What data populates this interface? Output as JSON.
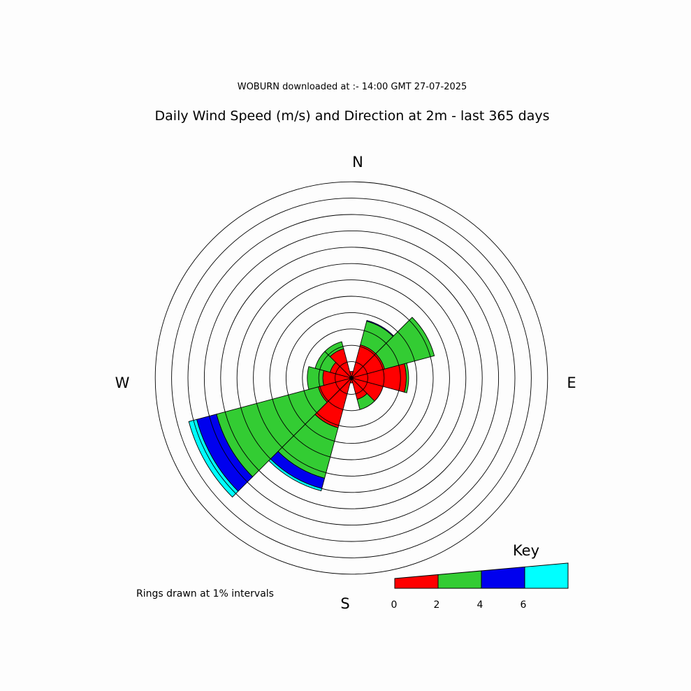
{
  "header": {
    "subtitle": "WOBURN downloaded at :- 14:00 GMT 27-07-2025",
    "title": "Daily Wind Speed (m/s) and Direction at 2m - last 365 days"
  },
  "compass": {
    "n": "N",
    "e": "E",
    "s": "S",
    "w": "W"
  },
  "note": "Rings drawn at 1% intervals",
  "key": {
    "title": "Key",
    "ticks": [
      "0",
      "2",
      "4",
      "6"
    ],
    "bands": [
      {
        "from": 0,
        "to": 2,
        "color": "#ff0000"
      },
      {
        "from": 2,
        "to": 4,
        "color": "#33cc33"
      },
      {
        "from": 4,
        "to": 6,
        "color": "#0000ee"
      },
      {
        "from": 6,
        "to": null,
        "color": "#00ffff"
      }
    ]
  },
  "chart_data": {
    "type": "polar-bar",
    "ring_interval_percent": 1,
    "ring_count": 12,
    "speed_bands_ms": [
      "0-2",
      "2-4",
      "4-6",
      "6+"
    ],
    "band_colors": [
      "#ff0000",
      "#33cc33",
      "#0000ee",
      "#00ffff"
    ],
    "sectors": [
      {
        "direction_deg": 0,
        "cumulative_percent": [
          0.4,
          0.4,
          0.4,
          0.4
        ]
      },
      {
        "direction_deg": 30,
        "cumulative_percent": [
          2.1,
          3.6,
          3.65,
          3.65
        ]
      },
      {
        "direction_deg": 60,
        "cumulative_percent": [
          2.1,
          5.25,
          5.25,
          5.25
        ]
      },
      {
        "direction_deg": 90,
        "cumulative_percent": [
          3.35,
          3.5,
          3.5,
          3.5
        ]
      },
      {
        "direction_deg": 120,
        "cumulative_percent": [
          2.0,
          2.0,
          2.0,
          2.0
        ]
      },
      {
        "direction_deg": 150,
        "cumulative_percent": [
          1.35,
          2.0,
          2.0,
          2.0
        ]
      },
      {
        "direction_deg": 180,
        "cumulative_percent": [
          0.3,
          0.3,
          0.3,
          0.3
        ]
      },
      {
        "direction_deg": 210,
        "cumulative_percent": [
          3.15,
          6.35,
          7.0,
          7.15
        ]
      },
      {
        "direction_deg": 240,
        "cumulative_percent": [
          2.1,
          8.55,
          9.8,
          10.3
        ]
      },
      {
        "direction_deg": 270,
        "cumulative_percent": [
          1.75,
          2.7,
          2.7,
          2.7
        ]
      },
      {
        "direction_deg": 300,
        "cumulative_percent": [
          1.35,
          2.3,
          2.3,
          2.3
        ]
      },
      {
        "direction_deg": 330,
        "cumulative_percent": [
          1.85,
          2.3,
          2.3,
          2.3
        ]
      }
    ]
  }
}
